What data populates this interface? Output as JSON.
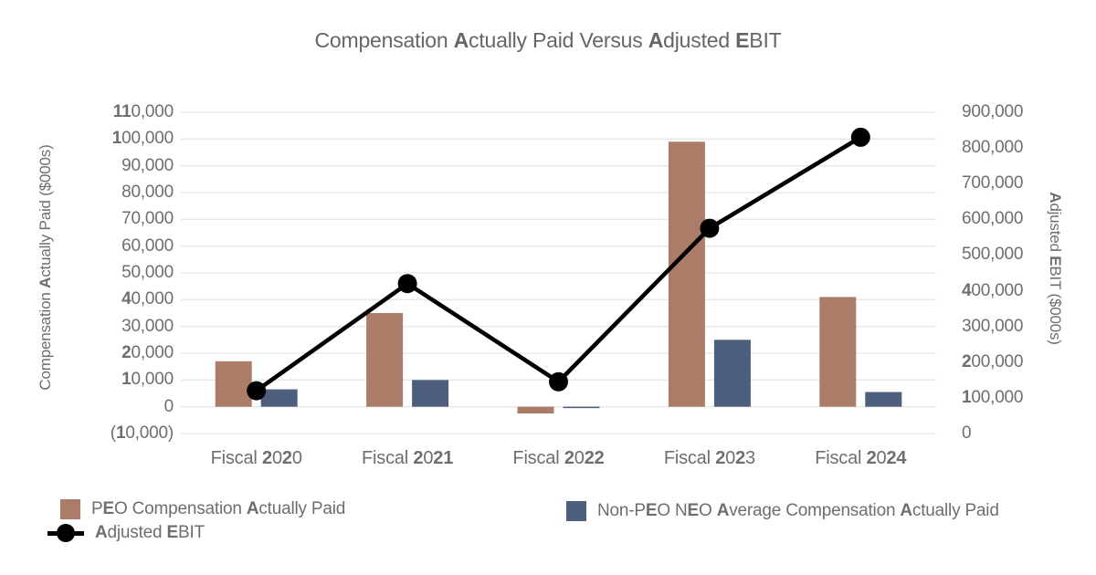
{
  "title": "Compensation Actually Paid Versus Adjusted EBIT",
  "styles": {
    "background": "#FFFFFF",
    "grid_color": "#E6E6E6",
    "text_color": "#6E6E6E",
    "title_color": "#666666"
  },
  "chart_data": {
    "type": "bar",
    "subtype": "combo-bar-line-dual-axis",
    "title": "Compensation Actually Paid Versus Adjusted EBIT",
    "grid": true,
    "legend_position": "bottom",
    "categories": [
      "Fiscal 2020",
      "Fiscal 2021",
      "Fiscal 2022",
      "Fiscal 2023",
      "Fiscal 2024"
    ],
    "series": [
      {
        "name": "PEO Compensation Actually Paid",
        "type": "bar",
        "axis": "left",
        "color": "#AB7D68",
        "values": [
          17000,
          35000,
          -2500,
          99000,
          41000
        ]
      },
      {
        "name": "Non-PEO NEO Average Compensation Actually Paid",
        "type": "bar",
        "axis": "left",
        "color": "#4D5F7C",
        "values": [
          6500,
          10000,
          -500,
          25000,
          5500
        ]
      },
      {
        "name": "Adjusted EBIT",
        "type": "line",
        "axis": "right",
        "color": "#000000",
        "marker": "filled-circle",
        "values": [
          120000,
          420000,
          145000,
          575000,
          830000
        ]
      }
    ],
    "left_axis": {
      "label": "Compensation Actually Paid ($000s)",
      "min": -10000,
      "max": 110000,
      "step": 10000,
      "tick_labels": [
        "110,000",
        "100,000",
        "90,000",
        "80,000",
        "70,000",
        "60,000",
        "50,000",
        "40,000",
        "30,000",
        "20,000",
        "10,000",
        "0",
        "(10,000)"
      ]
    },
    "right_axis": {
      "label": "Adjusted EBIT ($000s)",
      "min": 0,
      "max": 900000,
      "step": 100000,
      "tick_labels": [
        "900,000",
        "800,000",
        "700,000",
        "600,000",
        "500,000",
        "400,000",
        "300,000",
        "200,000",
        "100,000",
        "0"
      ]
    }
  }
}
